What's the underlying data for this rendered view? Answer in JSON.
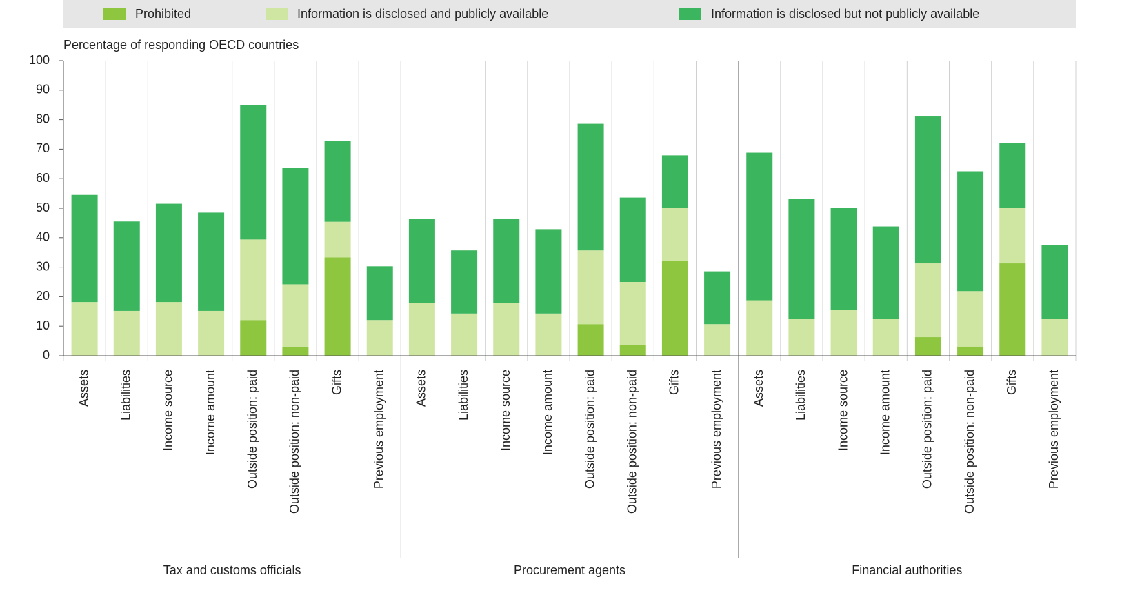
{
  "chart_data": {
    "type": "stacked_bar",
    "y_axis_label": "Percentage of responding OECD countries",
    "groups": [
      "Tax and customs officials",
      "Procurement agents",
      "Financial authorities"
    ],
    "categories": [
      "Assets",
      "Liabilities",
      "Income source",
      "Income amount",
      "Outside position: paid",
      "Outside position: non-paid",
      "Gifts",
      "Previous employment",
      "Assets",
      "Liabilities",
      "Income source",
      "Income amount",
      "Outside position: paid",
      "Outside position: non-paid",
      "Gifts",
      "Previous employment",
      "Assets",
      "Liabilities",
      "Income source",
      "Income amount",
      "Outside position: paid",
      "Outside position: non-paid",
      "Gifts",
      "Previous employment"
    ],
    "series": [
      {
        "name": "Prohibited",
        "color": "#8fc63f",
        "values": [
          0,
          0,
          0,
          0,
          12.1,
          3.0,
          33.3,
          0,
          0,
          0,
          0,
          0,
          10.7,
          3.6,
          32.1,
          0,
          0,
          0,
          0,
          0,
          6.3,
          3.1,
          31.3,
          0
        ]
      },
      {
        "name": "Information is disclosed and publicly available",
        "color": "#cfe6a2",
        "values": [
          18.2,
          15.2,
          18.2,
          15.2,
          27.3,
          21.2,
          12.1,
          12.1,
          17.9,
          14.3,
          17.9,
          14.3,
          25.0,
          21.4,
          17.9,
          10.7,
          18.8,
          12.5,
          15.6,
          12.5,
          25.0,
          18.8,
          18.8,
          12.5
        ]
      },
      {
        "name": "Information is disclosed but not publicly available",
        "color": "#3cb65e",
        "values": [
          36.3,
          30.3,
          33.3,
          33.3,
          45.5,
          39.4,
          27.3,
          18.2,
          28.5,
          21.4,
          28.6,
          28.6,
          42.9,
          28.6,
          17.9,
          17.9,
          50.0,
          40.6,
          34.4,
          31.3,
          50.0,
          40.6,
          21.9,
          25.0
        ]
      }
    ],
    "ylim": [
      0,
      100
    ],
    "yticks": [
      0,
      10,
      20,
      30,
      40,
      50,
      60,
      70,
      80,
      90,
      100
    ],
    "legend": "top"
  }
}
